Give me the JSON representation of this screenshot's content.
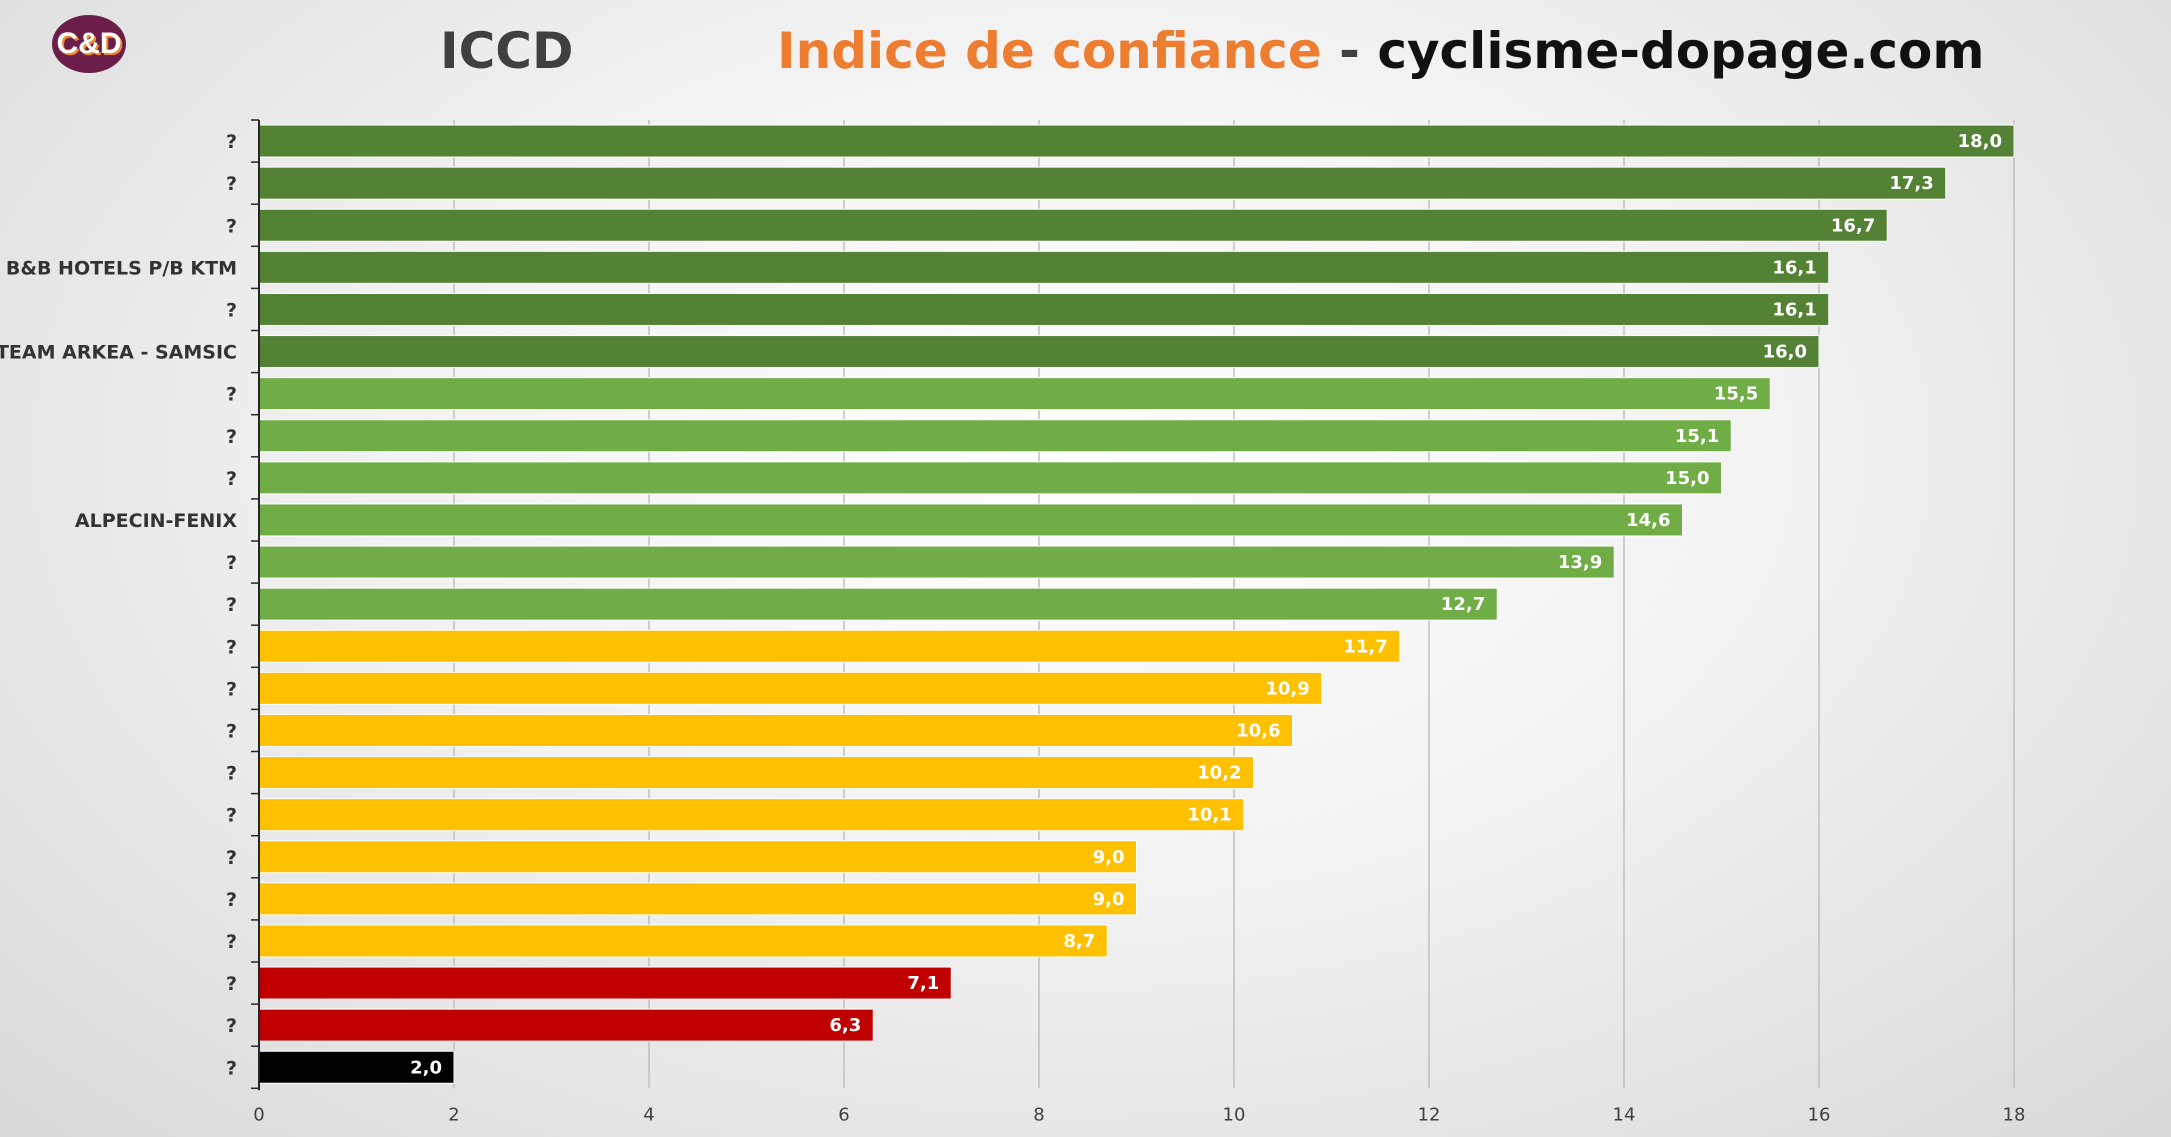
{
  "logo": {
    "text": "C&D"
  },
  "header": {
    "title_left": "ICCD",
    "title_accent": "Indice de confiance",
    "title_sep": " - ",
    "title_site": "cyclisme-dopage.com"
  },
  "colors": {
    "dark_green": "#548235",
    "light_green": "#70ad47",
    "amber": "#ffc000",
    "red": "#c00000",
    "black": "#000000",
    "grid": "#bfbfbf",
    "accent": "#ed7d31"
  },
  "chart_data": {
    "type": "bar",
    "orientation": "horizontal",
    "title": "",
    "xlabel": "",
    "ylabel": "",
    "xlim": [
      0,
      18
    ],
    "xticks": [
      0,
      2,
      4,
      6,
      8,
      10,
      12,
      14,
      16,
      18
    ],
    "grid": true,
    "categories": [
      "?",
      "?",
      "?",
      "B&B HOTELS P/B KTM",
      "?",
      "TEAM ARKEA - SAMSIC",
      "?",
      "?",
      "?",
      "ALPECIN-FENIX",
      "?",
      "?",
      "?",
      "?",
      "?",
      "?",
      "?",
      "?",
      "?",
      "?",
      "?",
      "?",
      "?"
    ],
    "values": [
      18.0,
      17.3,
      16.7,
      16.1,
      16.1,
      16.0,
      15.5,
      15.1,
      15.0,
      14.6,
      13.9,
      12.7,
      11.7,
      10.9,
      10.6,
      10.2,
      10.1,
      9.0,
      9.0,
      8.7,
      7.1,
      6.3,
      2.0
    ],
    "value_labels": [
      "18,0",
      "17,3",
      "16,7",
      "16,1",
      "16,1",
      "16,0",
      "15,5",
      "15,1",
      "15,0",
      "14,6",
      "13,9",
      "12,7",
      "11,7",
      "10,9",
      "10,6",
      "10,2",
      "10,1",
      "9,0",
      "9,0",
      "8,7",
      "7,1",
      "6,3",
      "2,0"
    ],
    "bar_colors": [
      "#548235",
      "#548235",
      "#548235",
      "#548235",
      "#548235",
      "#548235",
      "#70ad47",
      "#70ad47",
      "#70ad47",
      "#70ad47",
      "#70ad47",
      "#70ad47",
      "#ffc000",
      "#ffc000",
      "#ffc000",
      "#ffc000",
      "#ffc000",
      "#ffc000",
      "#ffc000",
      "#ffc000",
      "#c00000",
      "#c00000",
      "#000000"
    ]
  }
}
